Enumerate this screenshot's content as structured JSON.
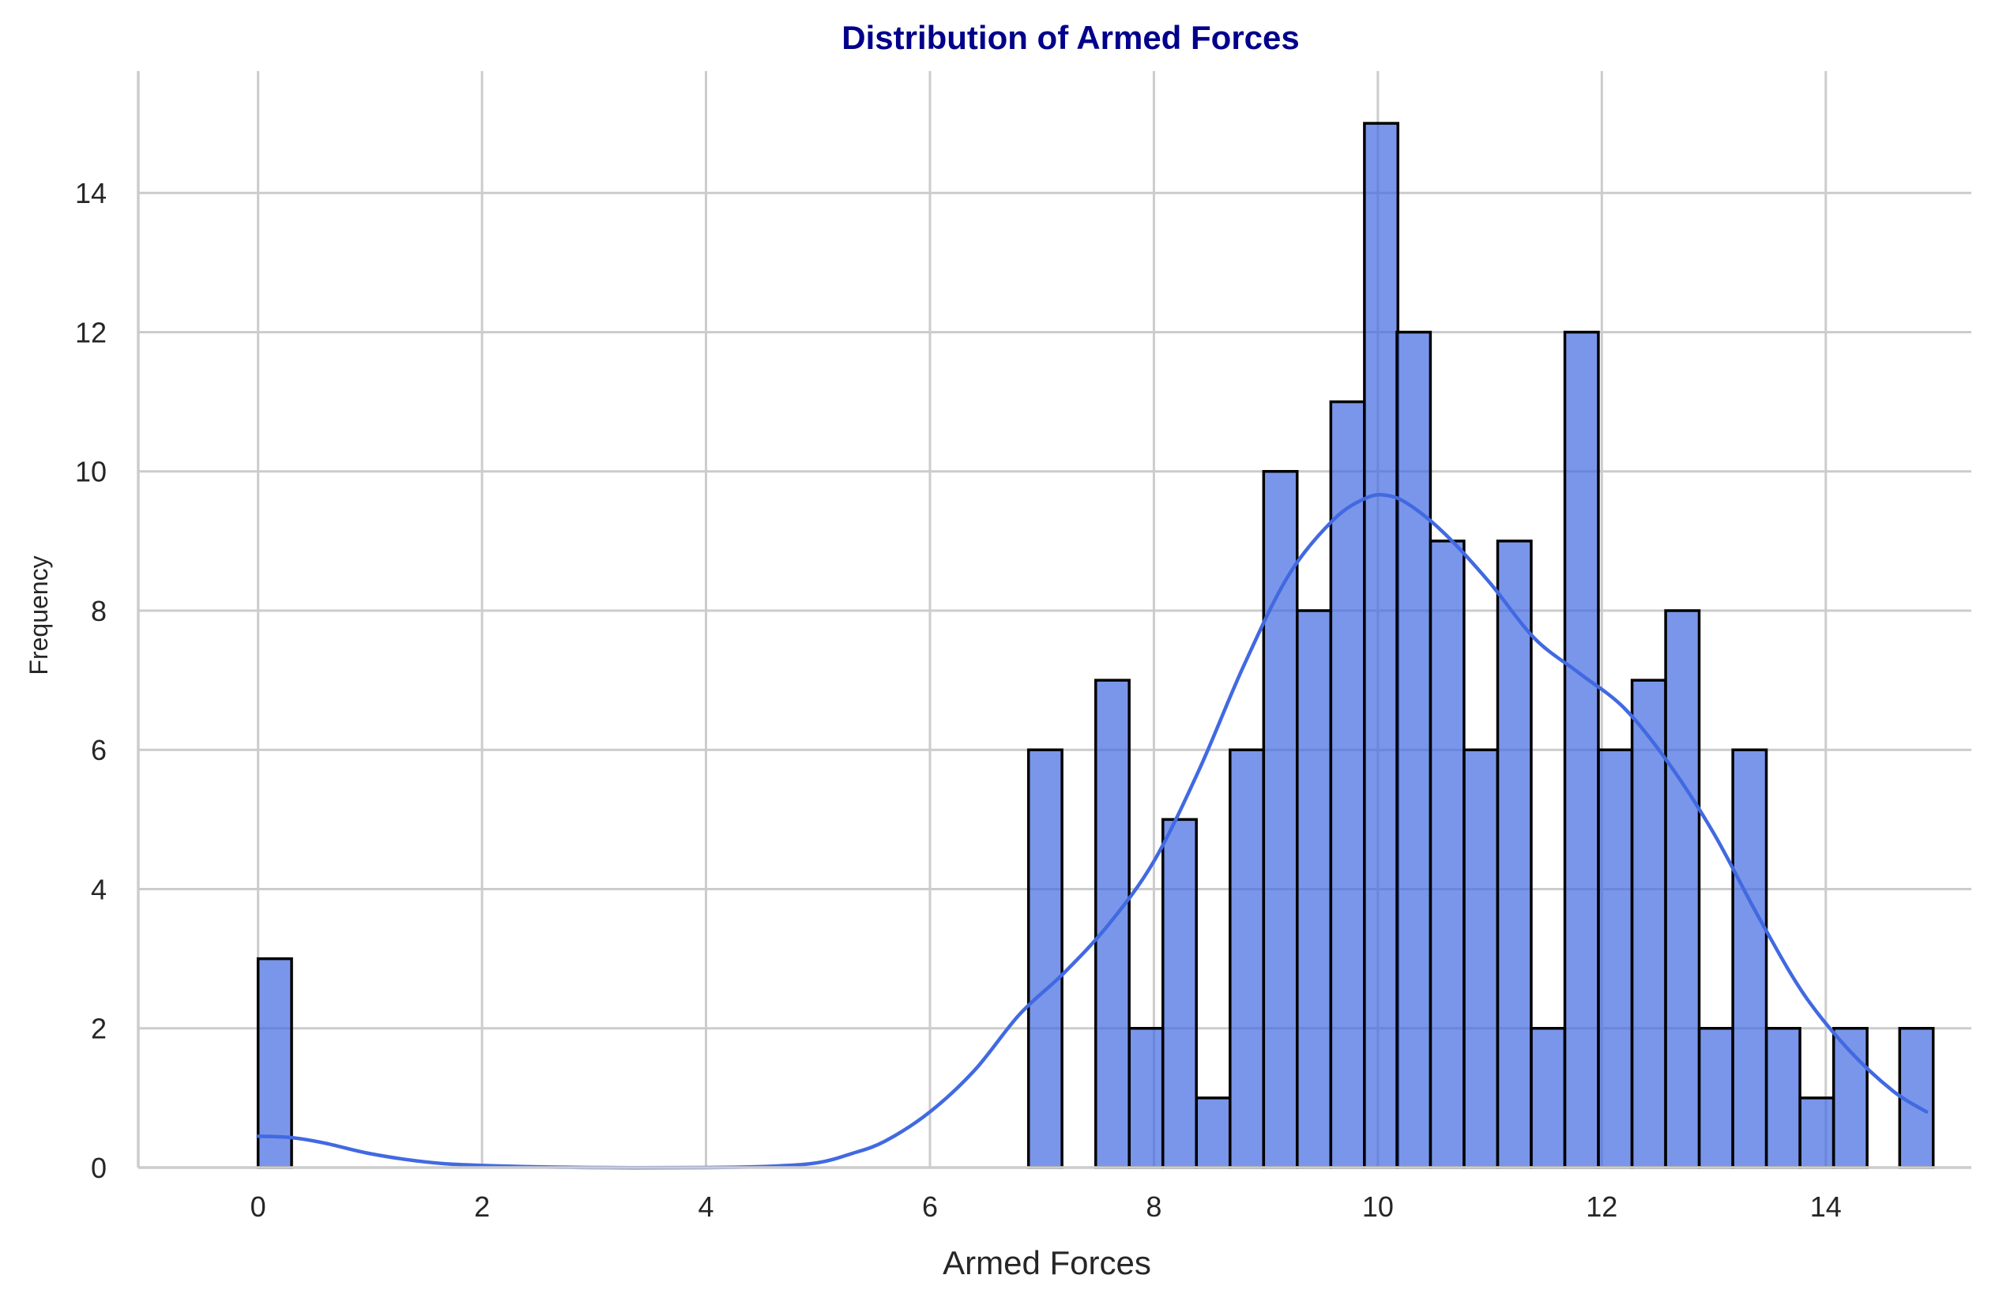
{
  "chart_data": {
    "type": "histogram",
    "title": "Distribution of Armed Forces",
    "xlabel": "Armed Forces",
    "ylabel": "Frequency",
    "xlim": [
      -1.07,
      15.3
    ],
    "ylim": [
      0,
      15.75
    ],
    "x_ticks": [
      0,
      2,
      4,
      6,
      8,
      10,
      12,
      14
    ],
    "y_ticks": [
      0,
      2,
      4,
      6,
      8,
      10,
      12,
      14
    ],
    "bin_width": 0.2993,
    "bar_color": "#4169e1",
    "edge_color": "#000000",
    "bins": [
      {
        "start": 0.0,
        "count": 3
      },
      {
        "start": 6.88,
        "count": 6
      },
      {
        "start": 7.48,
        "count": 7
      },
      {
        "start": 7.78,
        "count": 2
      },
      {
        "start": 8.08,
        "count": 5
      },
      {
        "start": 8.38,
        "count": 1
      },
      {
        "start": 8.68,
        "count": 6
      },
      {
        "start": 8.98,
        "count": 10
      },
      {
        "start": 9.28,
        "count": 8
      },
      {
        "start": 9.58,
        "count": 11
      },
      {
        "start": 9.88,
        "count": 15
      },
      {
        "start": 10.17,
        "count": 12
      },
      {
        "start": 10.47,
        "count": 9
      },
      {
        "start": 10.77,
        "count": 6
      },
      {
        "start": 11.07,
        "count": 9
      },
      {
        "start": 11.37,
        "count": 2
      },
      {
        "start": 11.67,
        "count": 12
      },
      {
        "start": 11.97,
        "count": 6
      },
      {
        "start": 12.27,
        "count": 7
      },
      {
        "start": 12.57,
        "count": 8
      },
      {
        "start": 12.87,
        "count": 2
      },
      {
        "start": 13.17,
        "count": 6
      },
      {
        "start": 13.47,
        "count": 2
      },
      {
        "start": 13.77,
        "count": 1
      },
      {
        "start": 14.07,
        "count": 2
      },
      {
        "start": 14.66,
        "count": 2
      }
    ],
    "kde": {
      "color": "#4169e1",
      "x": [
        0,
        0.3,
        0.6,
        1.0,
        1.5,
        2.0,
        3.0,
        4.0,
        4.6,
        5.0,
        5.3,
        5.6,
        6.0,
        6.4,
        6.8,
        7.2,
        7.6,
        8.0,
        8.4,
        8.8,
        9.2,
        9.6,
        9.9,
        10.1,
        10.3,
        10.6,
        11.0,
        11.4,
        11.8,
        12.2,
        12.6,
        13.0,
        13.4,
        13.8,
        14.2,
        14.6,
        14.9
      ],
      "y": [
        0.45,
        0.43,
        0.35,
        0.2,
        0.08,
        0.03,
        0.0,
        0.0,
        0.02,
        0.07,
        0.2,
        0.38,
        0.8,
        1.4,
        2.2,
        2.8,
        3.5,
        4.4,
        5.7,
        7.2,
        8.5,
        9.3,
        9.62,
        9.65,
        9.5,
        9.1,
        8.4,
        7.6,
        7.1,
        6.6,
        5.8,
        4.8,
        3.6,
        2.5,
        1.7,
        1.1,
        0.8
      ]
    }
  }
}
